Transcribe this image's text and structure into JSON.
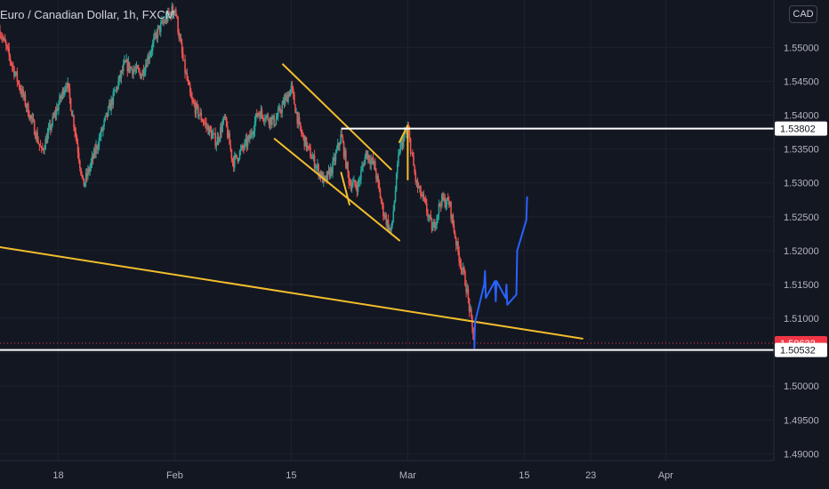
{
  "title": "Euro / Canadian Dollar, 1h, FXCM",
  "currency_button": "CAD",
  "colors": {
    "background": "#131722",
    "grid": "#1e222d",
    "axis_text": "#b2b5be",
    "candle_up": "#26a69a",
    "candle_down": "#ef5350",
    "channel": "#f2bd2c",
    "projection": "#2962ff",
    "level_line": "#ffffff",
    "price_tag_red": "#f23645"
  },
  "chart_data": {
    "type": "candlestick",
    "title": "Euro / Canadian Dollar, 1h, FXCM",
    "symbol": "EURCAD",
    "interval": "1h",
    "source": "FXCM",
    "currency": "CAD",
    "x_ticks": [
      {
        "date": "2021-01-18",
        "label": "18"
      },
      {
        "date": "2021-02-01",
        "label": "Feb"
      },
      {
        "date": "2021-02-15",
        "label": "15"
      },
      {
        "date": "2021-03-01",
        "label": "Mar"
      },
      {
        "date": "2021-03-15",
        "label": "15"
      },
      {
        "date": "2021-03-23",
        "label": "23"
      },
      {
        "date": "2021-04-01",
        "label": "Apr"
      }
    ],
    "xlim": [
      "2021-01-11",
      "2021-04-14"
    ],
    "ylim": [
      1.489,
      1.557
    ],
    "y_ticks": [
      1.49,
      1.495,
      1.5,
      1.505,
      1.51,
      1.515,
      1.52,
      1.525,
      1.53,
      1.535,
      1.54,
      1.545,
      1.55
    ],
    "price_path": [
      [
        "2021-01-11",
        1.5525
      ],
      [
        "2021-01-13",
        1.5455
      ],
      [
        "2021-01-15",
        1.5385
      ],
      [
        "2021-01-16",
        1.5345
      ],
      [
        "2021-01-18",
        1.5415
      ],
      [
        "2021-01-19",
        1.545
      ],
      [
        "2021-01-20",
        1.538
      ],
      [
        "2021-01-21",
        1.5295
      ],
      [
        "2021-01-22",
        1.533
      ],
      [
        "2021-01-24",
        1.5405
      ],
      [
        "2021-01-26",
        1.5475
      ],
      [
        "2021-01-28",
        1.546
      ],
      [
        "2021-01-30",
        1.5525
      ],
      [
        "2021-02-01",
        1.556
      ],
      [
        "2021-02-02",
        1.548
      ],
      [
        "2021-02-03",
        1.542
      ],
      [
        "2021-02-04",
        1.54
      ],
      [
        "2021-02-06",
        1.536
      ],
      [
        "2021-02-07",
        1.5395
      ],
      [
        "2021-02-08",
        1.533
      ],
      [
        "2021-02-10",
        1.5365
      ],
      [
        "2021-02-11",
        1.5405
      ],
      [
        "2021-02-13",
        1.539
      ],
      [
        "2021-02-15",
        1.544
      ],
      [
        "2021-02-16",
        1.538
      ],
      [
        "2021-02-17",
        1.535
      ],
      [
        "2021-02-19",
        1.53
      ],
      [
        "2021-02-20",
        1.5325
      ],
      [
        "2021-02-21",
        1.537
      ],
      [
        "2021-02-22",
        1.53
      ],
      [
        "2021-02-23",
        1.5295
      ],
      [
        "2021-02-24",
        1.5345
      ],
      [
        "2021-02-25",
        1.5325
      ],
      [
        "2021-02-26",
        1.526
      ],
      [
        "2021-02-27",
        1.5225
      ],
      [
        "2021-02-28",
        1.535
      ],
      [
        "2021-03-01",
        1.538
      ],
      [
        "2021-03-02",
        1.53
      ],
      [
        "2021-03-03",
        1.527
      ],
      [
        "2021-03-04",
        1.523
      ],
      [
        "2021-03-05",
        1.5275
      ],
      [
        "2021-03-06",
        1.527
      ],
      [
        "2021-03-07",
        1.52
      ],
      [
        "2021-03-08",
        1.515
      ],
      [
        "2021-03-09",
        1.5063
      ]
    ],
    "lines": {
      "channel_upper": [
        [
          "2021-02-14",
          1.5475
        ],
        [
          "2021-02-27",
          1.532
        ]
      ],
      "channel_lower": [
        [
          "2021-02-13",
          1.5365
        ],
        [
          "2021-02-28",
          1.5215
        ]
      ],
      "breakout_wedge": [
        [
          "2021-02-28",
          1.536
        ],
        [
          "2021-03-01",
          1.5385
        ],
        [
          "2021-02-29",
          1.5305
        ]
      ],
      "small_flag": [
        [
          "2021-02-21",
          1.5315
        ],
        [
          "2021-02-22",
          1.5268
        ]
      ],
      "long_trendline": [
        [
          "2021-01-11",
          1.5205
        ],
        [
          "2021-03-22",
          1.507
        ]
      ],
      "resistance": 1.53802,
      "support": 1.50532,
      "projection": [
        [
          "2021-03-09",
          1.5055
        ],
        [
          "2021-03-09",
          1.5095
        ],
        [
          "2021-03-10",
          1.515
        ],
        [
          "2021-03-10",
          1.517
        ],
        [
          "2021-03-10",
          1.513
        ],
        [
          "2021-03-11",
          1.5155
        ],
        [
          "2021-03-11",
          1.5125
        ],
        [
          "2021-03-11",
          1.5155
        ],
        [
          "2021-03-12",
          1.513
        ],
        [
          "2021-03-12",
          1.515
        ],
        [
          "2021-03-12",
          1.512
        ],
        [
          "2021-03-13",
          1.5135
        ],
        [
          "2021-03-13",
          1.52
        ],
        [
          "2021-03-14",
          1.5245
        ],
        [
          "2021-03-14",
          1.528
        ]
      ]
    },
    "price_labels": [
      {
        "text": "1.53802",
        "value": 1.53802,
        "style": "white"
      },
      {
        "text": "1.50632",
        "value": 1.50632,
        "style": "red"
      },
      {
        "text": "1.50532",
        "value": 1.50532,
        "style": "white"
      }
    ]
  }
}
